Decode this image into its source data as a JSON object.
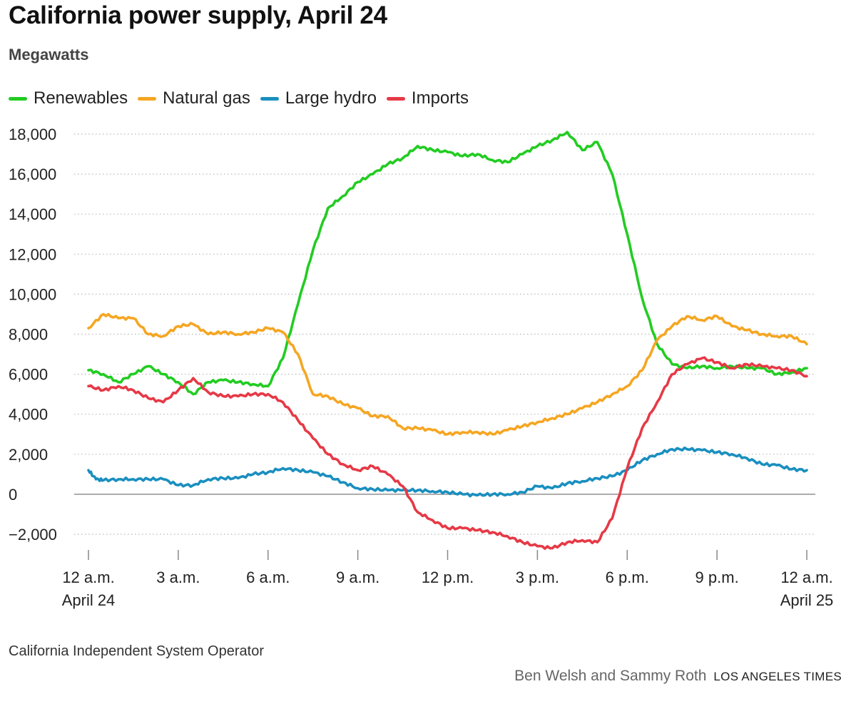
{
  "chart_data": {
    "type": "line",
    "title": "California power supply, April 24",
    "ylabel": "Megawatts",
    "xlabel": "",
    "ylim": [
      -2000,
      18000
    ],
    "yticks": [
      {
        "value": 18000,
        "label": "18,000"
      },
      {
        "value": 16000,
        "label": "16,000"
      },
      {
        "value": 14000,
        "label": "14,000"
      },
      {
        "value": 12000,
        "label": "12,000"
      },
      {
        "value": 10000,
        "label": "10,000"
      },
      {
        "value": 8000,
        "label": "8,000"
      },
      {
        "value": 6000,
        "label": "6,000"
      },
      {
        "value": 4000,
        "label": "4,000"
      },
      {
        "value": 2000,
        "label": "2,000"
      },
      {
        "value": 0,
        "label": "0"
      },
      {
        "value": -2000,
        "label": "−2,000"
      }
    ],
    "xlim": [
      0,
      24
    ],
    "xticks": [
      {
        "value": 0,
        "label": "12 a.m.",
        "sublabel": "April 24"
      },
      {
        "value": 3,
        "label": "3 a.m.",
        "sublabel": ""
      },
      {
        "value": 6,
        "label": "6 a.m.",
        "sublabel": ""
      },
      {
        "value": 9,
        "label": "9 a.m.",
        "sublabel": ""
      },
      {
        "value": 12,
        "label": "12 p.m.",
        "sublabel": ""
      },
      {
        "value": 15,
        "label": "3 p.m.",
        "sublabel": ""
      },
      {
        "value": 18,
        "label": "6 p.m.",
        "sublabel": ""
      },
      {
        "value": 21,
        "label": "9 p.m.",
        "sublabel": ""
      },
      {
        "value": 24,
        "label": "12 a.m.",
        "sublabel": "April 25"
      }
    ],
    "grid": true,
    "legend_position": "top",
    "series": [
      {
        "name": "Renewables",
        "color": "#22cc22",
        "x": [
          0,
          0.5,
          1,
          1.5,
          2,
          2.5,
          3,
          3.5,
          4,
          4.5,
          5,
          5.5,
          6,
          6.5,
          7,
          7.5,
          8,
          8.5,
          9,
          9.5,
          10,
          10.5,
          11,
          11.5,
          12,
          12.5,
          13,
          13.5,
          14,
          14.5,
          15,
          15.5,
          16,
          16.5,
          17,
          17.5,
          18,
          18.5,
          19,
          19.5,
          20,
          20.5,
          21,
          21.5,
          22,
          22.5,
          23,
          23.5,
          24
        ],
        "values": [
          6200,
          6000,
          5600,
          6000,
          6400,
          6000,
          5600,
          5000,
          5600,
          5700,
          5600,
          5500,
          5400,
          6800,
          9500,
          12200,
          14300,
          14900,
          15600,
          16000,
          16500,
          16800,
          17400,
          17200,
          17100,
          16900,
          17000,
          16700,
          16600,
          17000,
          17400,
          17700,
          18100,
          17200,
          17600,
          16000,
          13000,
          9800,
          7500,
          6500,
          6300,
          6400,
          6300,
          6400,
          6300,
          6300,
          6000,
          6100,
          6300
        ]
      },
      {
        "name": "Natural gas",
        "color": "#f5a623",
        "x": [
          0,
          0.5,
          1,
          1.5,
          2,
          2.5,
          3,
          3.5,
          4,
          4.5,
          5,
          5.5,
          6,
          6.5,
          7,
          7.5,
          8,
          8.5,
          9,
          9.5,
          10,
          10.5,
          11,
          11.5,
          12,
          12.5,
          13,
          13.5,
          14,
          14.5,
          15,
          15.5,
          16,
          16.5,
          17,
          17.5,
          18,
          18.5,
          19,
          19.5,
          20,
          20.5,
          21,
          21.5,
          22,
          22.5,
          23,
          23.5,
          24
        ],
        "values": [
          8300,
          9000,
          8800,
          8800,
          8000,
          7900,
          8400,
          8500,
          8000,
          8100,
          8000,
          8100,
          8300,
          8100,
          7000,
          5000,
          4900,
          4500,
          4300,
          3900,
          3900,
          3300,
          3300,
          3200,
          3000,
          3100,
          3100,
          3000,
          3200,
          3400,
          3600,
          3800,
          4000,
          4300,
          4600,
          5000,
          5400,
          6200,
          7700,
          8400,
          8900,
          8700,
          8900,
          8400,
          8200,
          8000,
          7900,
          7900,
          7500
        ]
      },
      {
        "name": "Large hydro",
        "color": "#1a8fbf",
        "x": [
          0,
          0.25,
          0.5,
          1,
          1.5,
          2,
          2.5,
          3,
          3.5,
          4,
          4.5,
          5,
          5.5,
          6,
          6.5,
          7,
          7.5,
          8,
          8.5,
          9,
          9.5,
          10,
          10.5,
          11,
          11.5,
          12,
          12.5,
          13,
          13.5,
          14,
          14.5,
          15,
          15.5,
          16,
          16.5,
          17,
          17.5,
          18,
          18.5,
          19,
          19.5,
          20,
          20.5,
          21,
          21.5,
          22,
          22.5,
          23,
          23.5,
          24
        ],
        "values": [
          1200,
          750,
          700,
          750,
          750,
          750,
          750,
          450,
          450,
          750,
          800,
          800,
          1000,
          1100,
          1300,
          1200,
          1100,
          900,
          600,
          300,
          250,
          200,
          200,
          200,
          150,
          100,
          0,
          -50,
          0,
          0,
          100,
          400,
          300,
          550,
          650,
          800,
          900,
          1200,
          1700,
          2000,
          2250,
          2250,
          2200,
          2100,
          2000,
          1800,
          1500,
          1450,
          1250,
          1200
        ]
      },
      {
        "name": "Imports",
        "color": "#e63946",
        "x": [
          0,
          0.5,
          1,
          1.5,
          2,
          2.5,
          3,
          3.5,
          4,
          4.5,
          5,
          5.5,
          6,
          6.5,
          7,
          7.5,
          8,
          8.5,
          9,
          9.5,
          10,
          10.5,
          11,
          11.5,
          12,
          12.5,
          13,
          13.5,
          14,
          14.5,
          15,
          15.5,
          16,
          16.5,
          17,
          17.5,
          18,
          18.5,
          19,
          19.5,
          20,
          20.5,
          21,
          21.5,
          22,
          22.5,
          23,
          23.5,
          24
        ],
        "values": [
          5400,
          5200,
          5400,
          5200,
          4800,
          4600,
          5200,
          5800,
          5100,
          4900,
          4900,
          5000,
          5000,
          4600,
          3700,
          2800,
          2000,
          1500,
          1200,
          1400,
          1000,
          400,
          -900,
          -1300,
          -1700,
          -1700,
          -1800,
          -1900,
          -2100,
          -2400,
          -2600,
          -2700,
          -2400,
          -2300,
          -2400,
          -1200,
          1300,
          3300,
          4600,
          6000,
          6500,
          6800,
          6600,
          6300,
          6500,
          6400,
          6300,
          6200,
          5900
        ]
      }
    ]
  },
  "source": "California Independent System Operator",
  "credit": "Ben Welsh and Sammy Roth",
  "publisher": "LOS ANGELES TIMES"
}
